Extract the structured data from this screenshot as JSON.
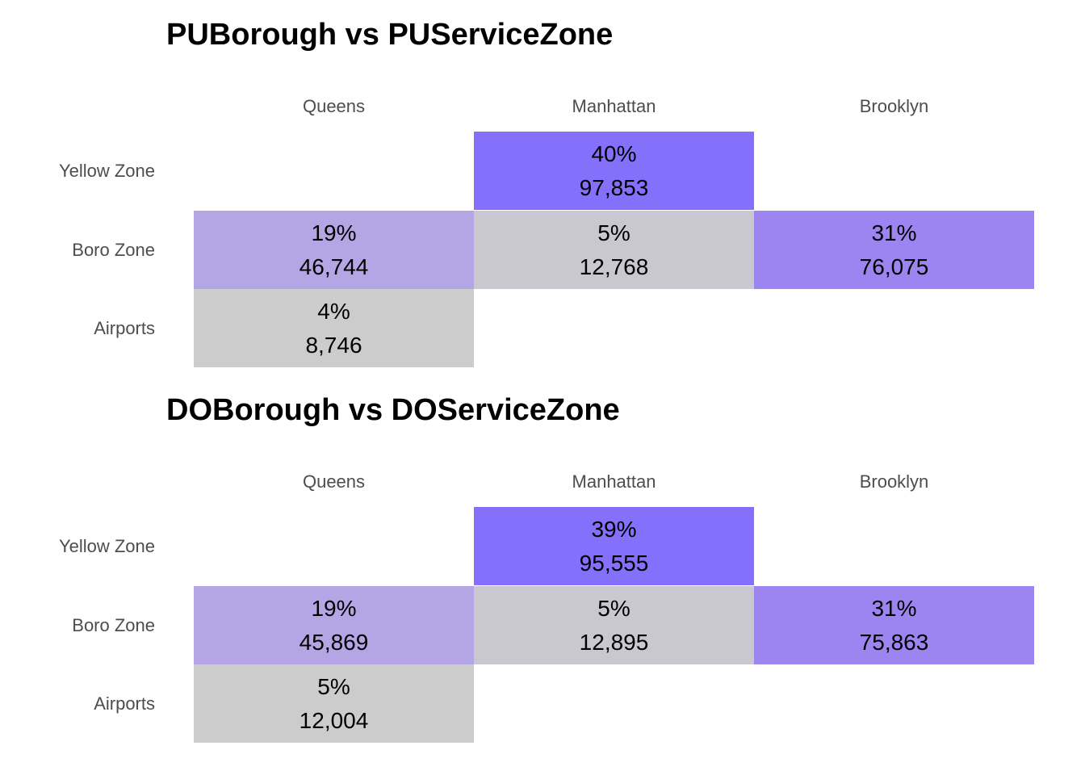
{
  "chart_data": [
    {
      "type": "heatmap",
      "title": "PUBorough vs PUServiceZone",
      "columns": [
        "Queens",
        "Manhattan",
        "Brooklyn"
      ],
      "rows": [
        "Yellow Zone",
        "Boro Zone",
        "Airports"
      ],
      "cells": [
        {
          "row": "Yellow Zone",
          "col": "Manhattan",
          "percent": "40%",
          "count": "97,853",
          "value": 97853,
          "color": "#8470fa"
        },
        {
          "row": "Boro Zone",
          "col": "Queens",
          "percent": "19%",
          "count": "46,744",
          "value": 46744,
          "color": "#b4a5e4"
        },
        {
          "row": "Boro Zone",
          "col": "Manhattan",
          "percent": "5%",
          "count": "12,768",
          "value": 12768,
          "color": "#c9c7cf"
        },
        {
          "row": "Boro Zone",
          "col": "Brooklyn",
          "percent": "31%",
          "count": "76,075",
          "value": 76075,
          "color": "#9c85f0"
        },
        {
          "row": "Airports",
          "col": "Queens",
          "percent": "4%",
          "count": "8,746",
          "value": 8746,
          "color": "#cccccc"
        }
      ]
    },
    {
      "type": "heatmap",
      "title": "DOBorough vs DOServiceZone",
      "columns": [
        "Queens",
        "Manhattan",
        "Brooklyn"
      ],
      "rows": [
        "Yellow Zone",
        "Boro Zone",
        "Airports"
      ],
      "cells": [
        {
          "row": "Yellow Zone",
          "col": "Manhattan",
          "percent": "39%",
          "count": "95,555",
          "value": 95555,
          "color": "#8470fa"
        },
        {
          "row": "Boro Zone",
          "col": "Queens",
          "percent": "19%",
          "count": "45,869",
          "value": 45869,
          "color": "#b4a5e4"
        },
        {
          "row": "Boro Zone",
          "col": "Manhattan",
          "percent": "5%",
          "count": "12,895",
          "value": 12895,
          "color": "#c9c7cf"
        },
        {
          "row": "Boro Zone",
          "col": "Brooklyn",
          "percent": "31%",
          "count": "75,863",
          "value": 75863,
          "color": "#9c85f0"
        },
        {
          "row": "Airports",
          "col": "Queens",
          "percent": "5%",
          "count": "12,004",
          "value": 12004,
          "color": "#cccccc"
        }
      ]
    }
  ]
}
